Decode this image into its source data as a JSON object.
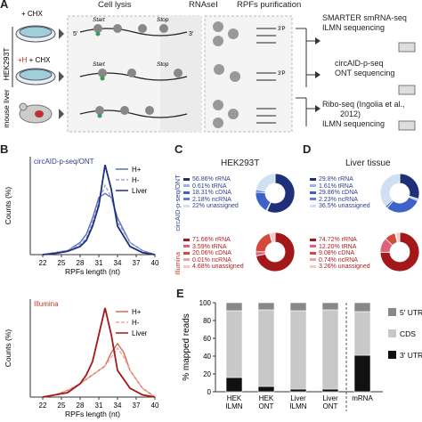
{
  "panelA": {
    "label": "A",
    "headers": {
      "lysis": "Cell lysis",
      "rnase": "RNAseI",
      "rpf": "RPFs purification"
    },
    "samples": [
      {
        "label": "+ CHX",
        "rowlabel_prefix": "",
        "highlight": ""
      },
      {
        "label": "+ CHX",
        "rowlabel_prefix": "+H",
        "highlight": "+H"
      },
      {
        "label": "",
        "rowlabel_prefix": "",
        "highlight": ""
      }
    ],
    "side_labels": {
      "hek": "HEK293T",
      "liver": "mouse liver"
    },
    "mrna_labels": {
      "start": "Start",
      "stop": "Stop",
      "five": "5'",
      "three": "3'",
      "threep": "3'P"
    },
    "methods": [
      {
        "line1": "SMARTER smRNA-seq",
        "line2": "ILMN sequencing"
      },
      {
        "line1": "circAID-p-seq",
        "line2": "ONT sequencing"
      },
      {
        "line1": "Ribo-seq (Ingolia et al.,",
        "line2": "2012)",
        "line3": "ILMN sequencing"
      }
    ]
  },
  "panelB": {
    "label": "B",
    "charts": [
      {
        "title": "circAID-p-seq/ONT",
        "title_color": "#2b3f8f",
        "ylabel": "Counts (%)",
        "xlabel": "RPFs length (nt)",
        "ticks": [
          "22",
          "25",
          "28",
          "31",
          "34",
          "37",
          "40"
        ],
        "legend": [
          "H+",
          "H-",
          "Liver"
        ]
      },
      {
        "title": "Illumina",
        "title_color": "#c0392b",
        "ylabel": "Counts (%)",
        "xlabel": "RPFs length (nt)",
        "ticks": [
          "22",
          "25",
          "28",
          "31",
          "34",
          "37",
          "40"
        ],
        "legend": [
          "H+",
          "H-",
          "Liver"
        ]
      }
    ]
  },
  "panelC": {
    "label": "C",
    "title": "HEK293T",
    "side_top": "circAID-p-seq/ONT",
    "side_bottom": "Illumina",
    "top": [
      "56.86% rRNA",
      "0.61% tRNA",
      "18.31% cDNA",
      "2.18% ncRNA",
      "22% unassigned"
    ],
    "bottom": [
      "71.66% rRNA",
      "3.59% tRNA",
      "20.06% cDNA",
      "0.01% ncRNA",
      "4.68% unassigned"
    ]
  },
  "panelD": {
    "label": "D",
    "title": "Liver tissue",
    "top": [
      "29.8% rRNA",
      "1.61% tRNA",
      "29.86% cDNA",
      "2.23% ncRNA",
      "36.5% unassigned"
    ],
    "bottom": [
      "74.72% rRNA",
      "12.20% tRNA",
      "9.08% cDNA",
      "0.74% ncRNA",
      "3.26% unassigned"
    ]
  },
  "panelE": {
    "label": "E",
    "ylabel": "% mapped reads",
    "ticks": [
      "0",
      "20",
      "40",
      "60",
      "80",
      "100"
    ],
    "bars": [
      {
        "l1": "HEK",
        "l2": "ILMN"
      },
      {
        "l1": "HEK",
        "l2": "ONT"
      },
      {
        "l1": "Liver",
        "l2": "ILMN"
      },
      {
        "l1": "Liver",
        "l2": "ONT"
      },
      {
        "l1": "mRNA",
        "l2": ""
      }
    ],
    "legend": [
      "5' UTR",
      "CDS",
      "3' UTR"
    ]
  },
  "colors": {
    "ont_dark": "#1f2f7a",
    "ont_mid": "#5a6fb8",
    "ont_light": "#9aa6d6",
    "ilmn_dark": "#a31919",
    "ilmn_mid": "#d66a55",
    "ilmn_light": "#f0a898",
    "grey_cds": "#c8c8c8",
    "grey_5utr": "#888888",
    "utr3": "#111111"
  },
  "chart_data": [
    {
      "type": "line",
      "title": "circAID-p-seq/ONT",
      "xlabel": "RPFs length (nt)",
      "ylabel": "Counts (%)",
      "xlim": [
        20,
        40
      ],
      "series": [
        {
          "name": "H+",
          "x": [
            22,
            24,
            26,
            28,
            29,
            30,
            31,
            32,
            33,
            34,
            36,
            38,
            40
          ],
          "y": [
            0,
            0.5,
            1,
            3,
            5,
            9,
            14,
            15,
            14,
            9,
            3,
            1,
            0
          ]
        },
        {
          "name": "H-",
          "x": [
            22,
            24,
            26,
            28,
            29,
            30,
            31,
            32,
            33,
            34,
            36,
            38,
            40
          ],
          "y": [
            0,
            0.5,
            1,
            2.5,
            4,
            8,
            13,
            17,
            14,
            8,
            3,
            1,
            0
          ]
        },
        {
          "name": "Liver",
          "x": [
            22,
            24,
            26,
            28,
            29,
            30,
            31,
            32,
            33,
            34,
            36,
            38,
            40
          ],
          "y": [
            0,
            0.3,
            0.8,
            2,
            3.5,
            7,
            12,
            22,
            16,
            7,
            2,
            0.5,
            0
          ]
        }
      ]
    },
    {
      "type": "line",
      "title": "Illumina",
      "xlabel": "RPFs length (nt)",
      "ylabel": "Counts (%)",
      "xlim": [
        20,
        40
      ],
      "series": [
        {
          "name": "H+",
          "x": [
            22,
            24,
            26,
            28,
            30,
            31,
            32,
            33,
            34,
            35,
            36,
            38,
            40
          ],
          "y": [
            0,
            0.5,
            1.5,
            3,
            5,
            6,
            7,
            10,
            12,
            10,
            6,
            2,
            0
          ]
        },
        {
          "name": "H-",
          "x": [
            22,
            24,
            26,
            28,
            30,
            31,
            32,
            33,
            34,
            35,
            36,
            38,
            40
          ],
          "y": [
            0,
            0.5,
            1.5,
            3,
            5,
            6,
            7,
            9,
            11,
            9,
            6,
            2,
            0
          ]
        },
        {
          "name": "Liver",
          "x": [
            22,
            24,
            26,
            28,
            29,
            30,
            31,
            32,
            33,
            34,
            36,
            38,
            40
          ],
          "y": [
            0,
            0.5,
            1,
            3,
            5,
            8,
            14,
            20,
            14,
            6,
            2,
            0.5,
            0
          ]
        }
      ]
    },
    {
      "type": "pie",
      "title": "HEK293T",
      "categories": [
        "rRNA",
        "tRNA",
        "cDNA",
        "ncRNA",
        "unassigned"
      ],
      "series": [
        {
          "name": "circAID-p-seq/ONT",
          "values": [
            56.86,
            0.61,
            18.31,
            2.18,
            22
          ]
        },
        {
          "name": "Illumina",
          "values": [
            71.66,
            3.59,
            20.06,
            0.01,
            4.68
          ]
        }
      ]
    },
    {
      "type": "pie",
      "title": "Liver tissue",
      "categories": [
        "rRNA",
        "tRNA",
        "cDNA",
        "ncRNA",
        "unassigned"
      ],
      "series": [
        {
          "name": "circAID-p-seq/ONT",
          "values": [
            29.8,
            1.61,
            29.86,
            2.23,
            36.5
          ]
        },
        {
          "name": "Illumina",
          "values": [
            74.72,
            12.2,
            9.08,
            0.74,
            3.26
          ]
        }
      ]
    },
    {
      "type": "bar",
      "ylabel": "% mapped reads",
      "ylim": [
        0,
        100
      ],
      "categories": [
        "HEK ILMN",
        "HEK ONT",
        "Liver ILMN",
        "Liver ONT",
        "mRNA"
      ],
      "series": [
        {
          "name": "3' UTR",
          "values": [
            16,
            6,
            3,
            3,
            41
          ]
        },
        {
          "name": "CDS",
          "values": [
            75,
            86,
            88,
            89,
            49
          ]
        },
        {
          "name": "5' UTR",
          "values": [
            9,
            8,
            9,
            8,
            10
          ]
        }
      ]
    }
  ]
}
